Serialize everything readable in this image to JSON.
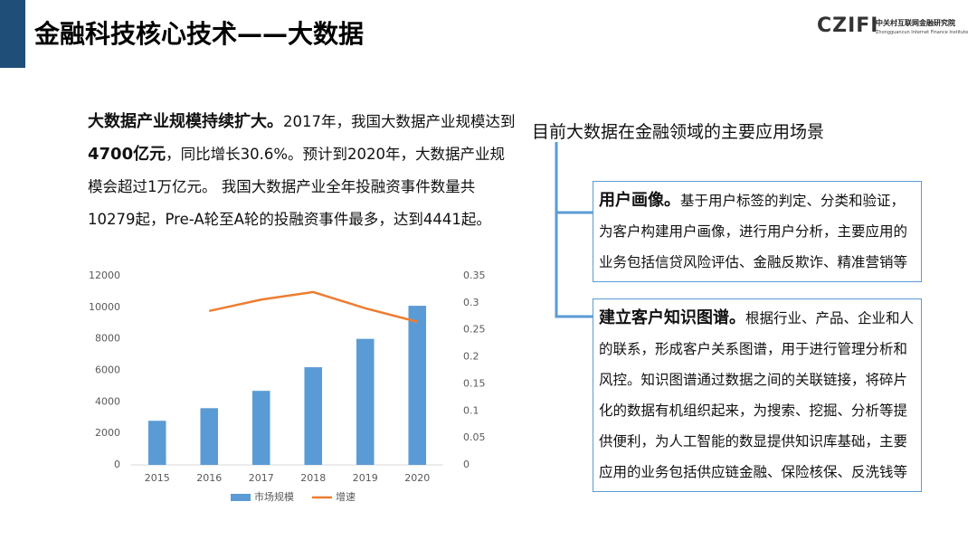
{
  "header": {
    "title": "金融科技核心技术——大数据",
    "logo": "CZIFI",
    "institute": "中关村互联网金融研究院",
    "institute_en": "Zhongguancun Internet Finance Institute"
  },
  "intro": [
    "大数据产业规模持续扩大。",
    "2017年，我国大数据产业规模达到",
    "4700亿元",
    "，同比增长30.6%。预计到2020年，大数据产业规模会超过1万亿元。 我国大数据产业全年投融资事件数量共10279起，Pre-A轮至A轮的投融资事件最多，达到4441起。"
  ],
  "chart_data": {
    "type": "bar",
    "categories": [
      "2015",
      "2016",
      "2017",
      "2018",
      "2019",
      "2020"
    ],
    "series": [
      {
        "name": "市场规模",
        "color": "#5b9bd5",
        "values": [
          2800,
          3600,
          4700,
          6200,
          8000,
          10100
        ]
      },
      {
        "name": "增速",
        "color": "#ed7d31",
        "type": "line",
        "axis": "y2",
        "values": [
          null,
          0.285,
          0.306,
          0.32,
          0.29,
          0.265
        ]
      }
    ],
    "ylim": [
      0,
      12000
    ],
    "yticks": [
      0,
      2000,
      4000,
      6000,
      8000,
      10000,
      12000
    ],
    "y2lim": [
      0,
      0.35
    ],
    "y2ticks": [
      0,
      0.05,
      0.1,
      0.15,
      0.2,
      0.25,
      0.3,
      0.35
    ],
    "legend": "bottom"
  },
  "panel": {
    "title": "目前大数据在金融领域的主要应用场景",
    "items": [
      {
        "heading": "用户画像。",
        "text": "基于用户标签的判定、分类和验证，为客户构建用户画像，进行用户分析，主要应用的业务包括信贷风险评估、金融反欺诈、精准营销等"
      },
      {
        "heading": "建立客户知识图谱。",
        "text": "根据行业、产品、企业和人的联系，形成客户关系图谱，用于进行管理分析和风控。知识图谱通过数据之间的关联链接，将碎片化的数据有机组织起来，为搜索、挖掘、分析等提供便利，为人工智能的数显提供知识库基础，主要应用的业务包括供应链金融、保险核保、反洗钱等"
      }
    ]
  }
}
